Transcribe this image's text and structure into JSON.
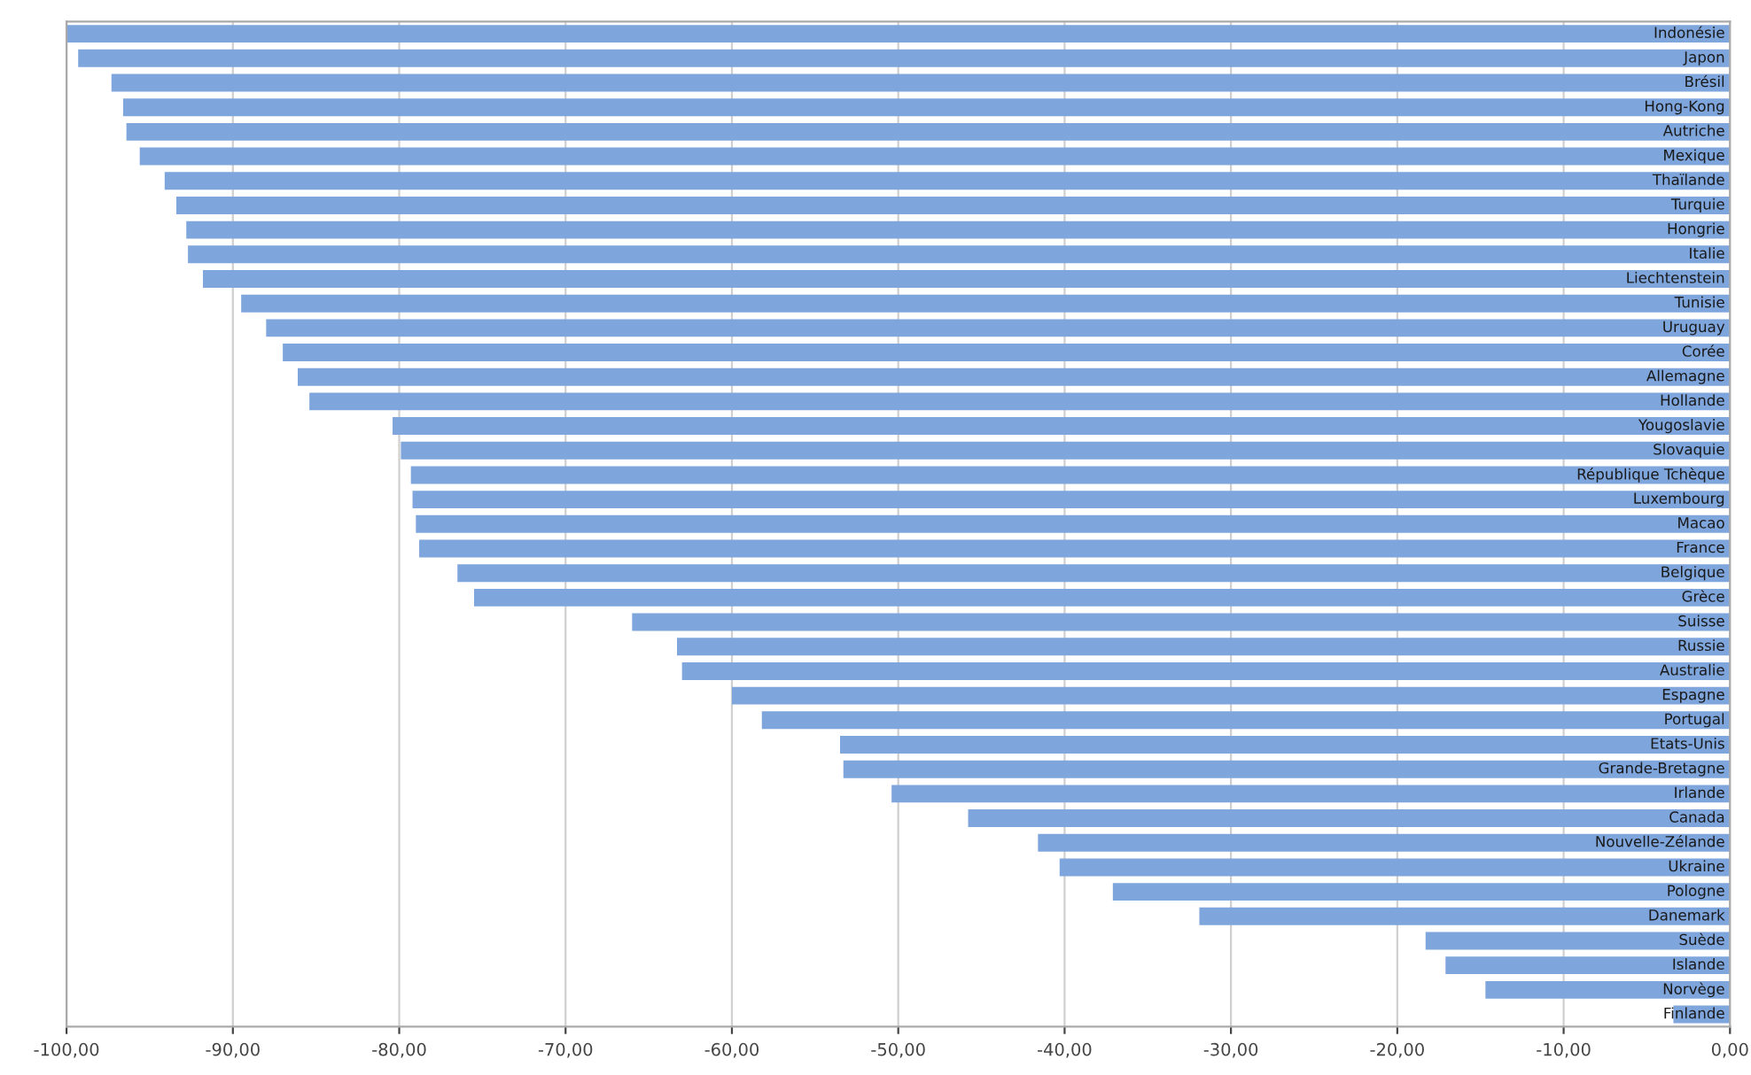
{
  "chart_data": {
    "type": "bar",
    "orientation": "horizontal",
    "categories": [
      "Indonésie",
      "Japon",
      "Brésil",
      "Hong-Kong",
      "Autriche",
      "Mexique",
      "Thaïlande",
      "Turquie",
      "Hongrie",
      "Italie",
      "Liechtenstein",
      "Tunisie",
      "Uruguay",
      "Corée",
      "Allemagne",
      "Hollande",
      "Yougoslavie",
      "Slovaquie",
      "République Tchèque",
      "Luxembourg",
      "Macao",
      "France",
      "Belgique",
      "Grèce",
      "Suisse",
      "Russie",
      "Australie",
      "Espagne",
      "Portugal",
      "Etats-Unis",
      "Grande-Bretagne",
      "Irlande",
      "Canada",
      "Nouvelle-Zélande",
      "Ukraine",
      "Pologne",
      "Danemark",
      "Suède",
      "Islande",
      "Norvège",
      "Finlande"
    ],
    "values": [
      -100,
      -99.3,
      -97.3,
      -96.6,
      -96.4,
      -95.6,
      -94.1,
      -93.4,
      -92.8,
      -92.7,
      -91.8,
      -89.5,
      -88.0,
      -87.0,
      -86.1,
      -85.4,
      -80.4,
      -79.9,
      -79.3,
      -79.2,
      -79.0,
      -78.8,
      -76.5,
      -75.5,
      -66.0,
      -63.3,
      -63.0,
      -60.0,
      -58.2,
      -53.5,
      -53.3,
      -50.4,
      -45.8,
      -41.6,
      -40.3,
      -37.1,
      -31.9,
      -18.3,
      -17.1,
      -14.7,
      -3.4
    ],
    "color": "#7ea5dc",
    "xlim": [
      -100,
      0
    ],
    "xticks": [
      {
        "value": -100,
        "label": "-100,00"
      },
      {
        "value": -90,
        "label": "-90,00"
      },
      {
        "value": -80,
        "label": "-80,00"
      },
      {
        "value": -70,
        "label": "-70,00"
      },
      {
        "value": -60,
        "label": "-60,00"
      },
      {
        "value": -50,
        "label": "-50,00"
      },
      {
        "value": -40,
        "label": "-40,00"
      },
      {
        "value": -30,
        "label": "-30,00"
      },
      {
        "value": -20,
        "label": "-20,00"
      },
      {
        "value": -10,
        "label": "-10,00"
      },
      {
        "value": 0,
        "label": "0,00"
      }
    ],
    "grid": "x",
    "legend": false
  }
}
